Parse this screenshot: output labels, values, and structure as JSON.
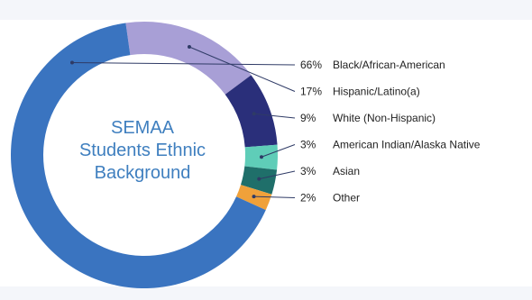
{
  "chart_data": {
    "type": "pie",
    "subtype": "donut",
    "title_lines": [
      "SEMAA",
      "Students Ethnic",
      "Background"
    ],
    "slices": [
      {
        "label": "Black/African-American",
        "pct_label": "66%",
        "value": 66,
        "color": "#3a74c0"
      },
      {
        "label": "Hispanic/Latino(a)",
        "pct_label": "17%",
        "value": 17,
        "color": "#a89fd6"
      },
      {
        "label": "White (Non-Hispanic)",
        "pct_label": "9%",
        "value": 9,
        "color": "#2a2f7a"
      },
      {
        "label": "American Indian/Alaska Native",
        "pct_label": "3%",
        "value": 3,
        "color": "#5fcdb8"
      },
      {
        "label": "Asian",
        "pct_label": "3%",
        "value": 3,
        "color": "#1f6f6a"
      },
      {
        "label": "Other",
        "pct_label": "2%",
        "value": 2,
        "color": "#f0a13a"
      }
    ],
    "legend_position": "right",
    "leader_line_color": "#2f3b66"
  }
}
